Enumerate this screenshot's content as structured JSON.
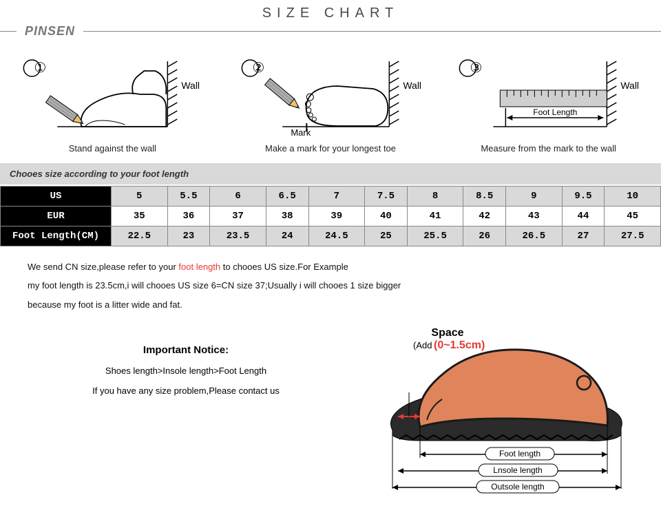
{
  "header": {
    "title": "SIZE CHART",
    "brand": "PINSEN"
  },
  "steps": [
    {
      "num": "①",
      "wall": "Wall",
      "caption": "Stand against the wall"
    },
    {
      "num": "②",
      "wall": "Wall",
      "mark": "Mark",
      "caption": "Make a mark for your longest toe"
    },
    {
      "num": "③",
      "wall": "Wall",
      "footlen": "Foot Length",
      "caption": "Measure from the mark to the wall"
    }
  ],
  "table_heading": "Chooes size according to your foot length",
  "size_table": {
    "rows": [
      {
        "label": "US",
        "cells": [
          "5",
          "5.5",
          "6",
          "6.5",
          "7",
          "7.5",
          "8",
          "8.5",
          "9",
          "9.5",
          "10"
        ],
        "white": false
      },
      {
        "label": "EUR",
        "cells": [
          "35",
          "36",
          "37",
          "38",
          "39",
          "40",
          "41",
          "42",
          "43",
          "44",
          "45"
        ],
        "white": true
      },
      {
        "label": "Foot Length(CM)",
        "cells": [
          "22.5",
          "23",
          "23.5",
          "24",
          "24.5",
          "25",
          "25.5",
          "26",
          "26.5",
          "27",
          "27.5"
        ],
        "white": false
      }
    ]
  },
  "note": {
    "prefix": "We send CN size,please refer to your ",
    "highlight": "foot length",
    "rest": " to chooes US size.For Example",
    "line2": "my foot length is 23.5cm,i will chooes US size 6=CN size 37;Usually i will chooes 1 size bigger",
    "line3": "because my foot is a litter wide and fat."
  },
  "notice": {
    "heading": "Important Notice:",
    "sub": "Shoes length>Insole length>Foot Length",
    "contact": "If you have any size problem,Please contact us"
  },
  "diagram": {
    "space": "Space",
    "add": "(Add",
    "range": "(0~1.5cm)",
    "foot": "Foot length",
    "insole": "Lnsole length",
    "outsole": "Outsole length"
  },
  "colors": {
    "foot_fill": "#e0845b",
    "foot_stroke": "#1a1a1a",
    "sole": "#2b2b2b",
    "red": "#e53935",
    "gray_bg": "#d9d9d9",
    "pencil_body": "#b0b0b0",
    "pencil_tip_wood": "#f0c070",
    "ruler": "#cfcfcf"
  }
}
